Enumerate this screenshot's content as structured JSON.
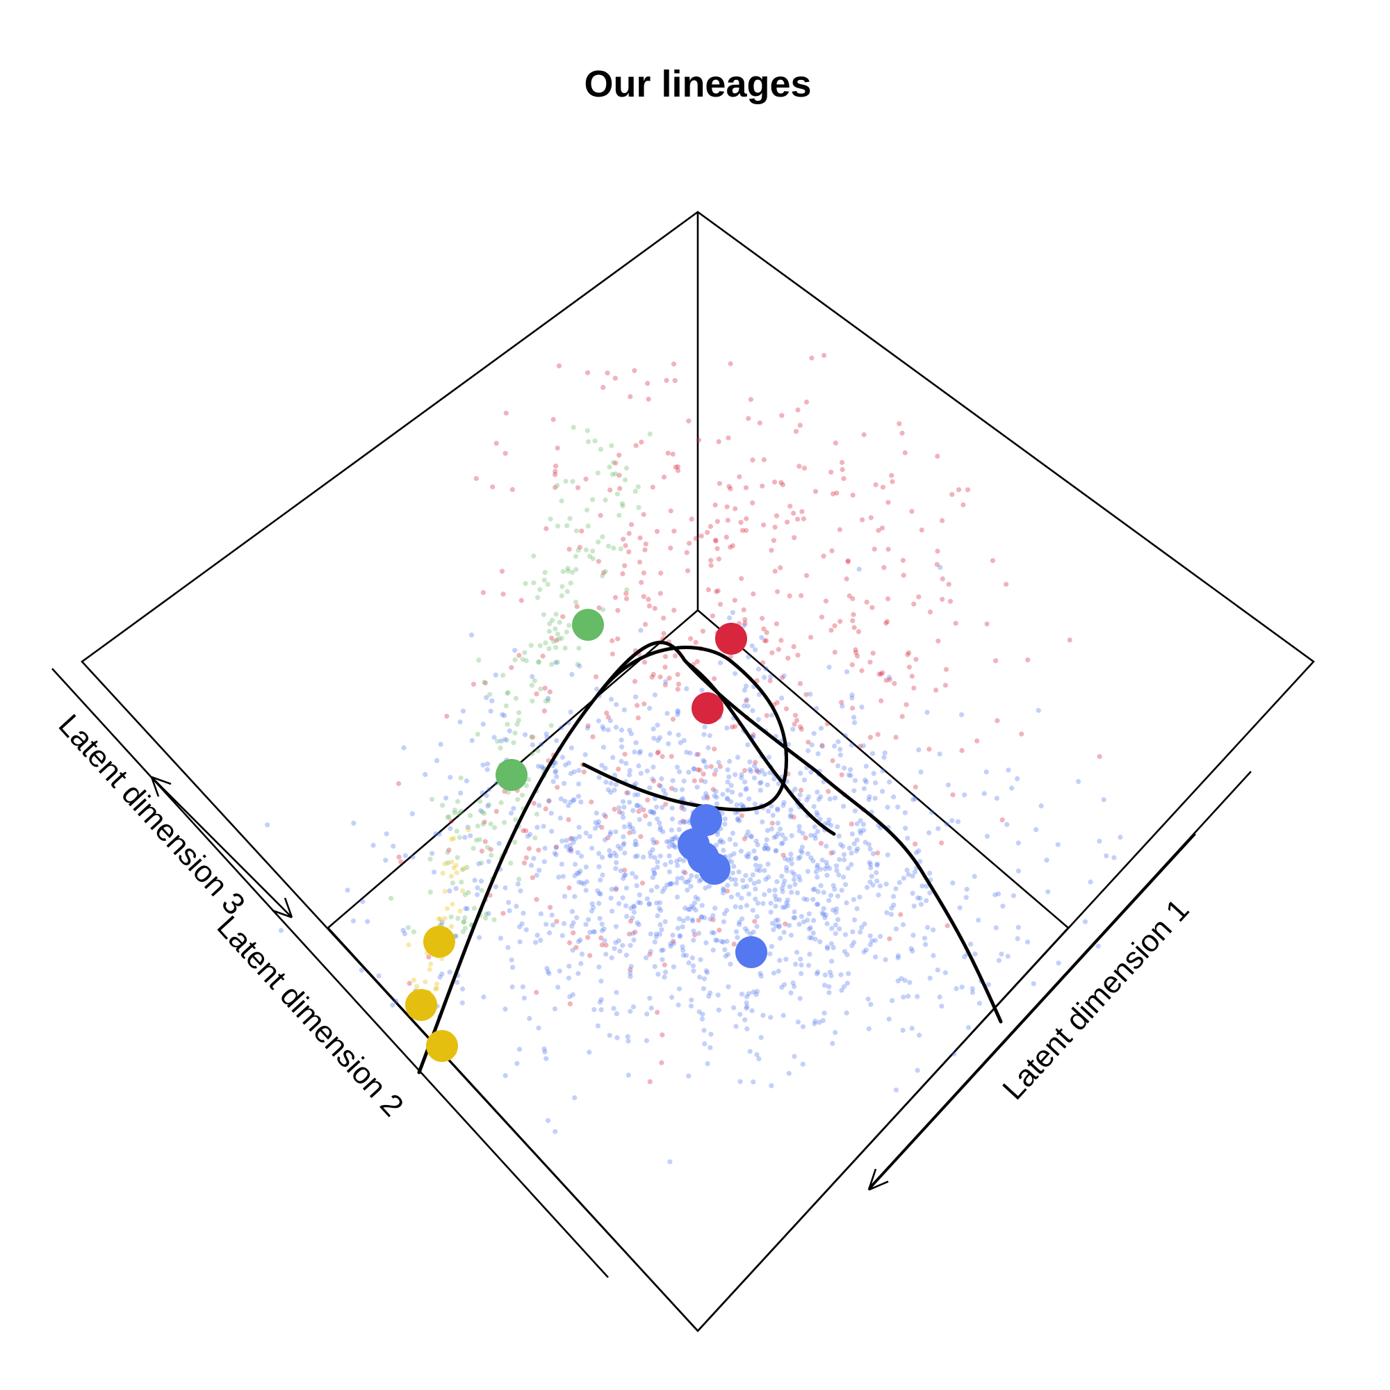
{
  "chart_data": {
    "type": "scatter",
    "projection": "3d-perspective-box",
    "title": "Our lineages",
    "axes": {
      "x": {
        "label": "Latent dimension 1"
      },
      "y": {
        "label": "Latent dimension 2"
      },
      "z": {
        "label": "Latent dimension 3"
      }
    },
    "grid": false,
    "legend": "none",
    "colors": {
      "red": "#d7263d",
      "green": "#66bb66",
      "blue": "#5478f0",
      "yellow": "#e5bf0f",
      "curve": "#000000",
      "box": "#000000"
    },
    "cell_clusters": [
      {
        "color": "red",
        "approx_points": 520,
        "opacity": 0.35
      },
      {
        "color": "green",
        "approx_points": 210,
        "opacity": 0.35
      },
      {
        "color": "blue",
        "approx_points": 1450,
        "opacity": 0.35
      },
      {
        "color": "yellow",
        "approx_points": 45,
        "opacity": 0.35
      }
    ],
    "cluster_centers": [
      {
        "color": "green"
      },
      {
        "color": "green"
      },
      {
        "color": "red"
      },
      {
        "color": "red"
      },
      {
        "color": "yellow"
      },
      {
        "color": "yellow"
      },
      {
        "color": "yellow"
      },
      {
        "color": "blue"
      },
      {
        "color": "blue"
      },
      {
        "color": "blue"
      },
      {
        "color": "blue"
      },
      {
        "color": "blue"
      }
    ],
    "lineage_curves": 3
  }
}
